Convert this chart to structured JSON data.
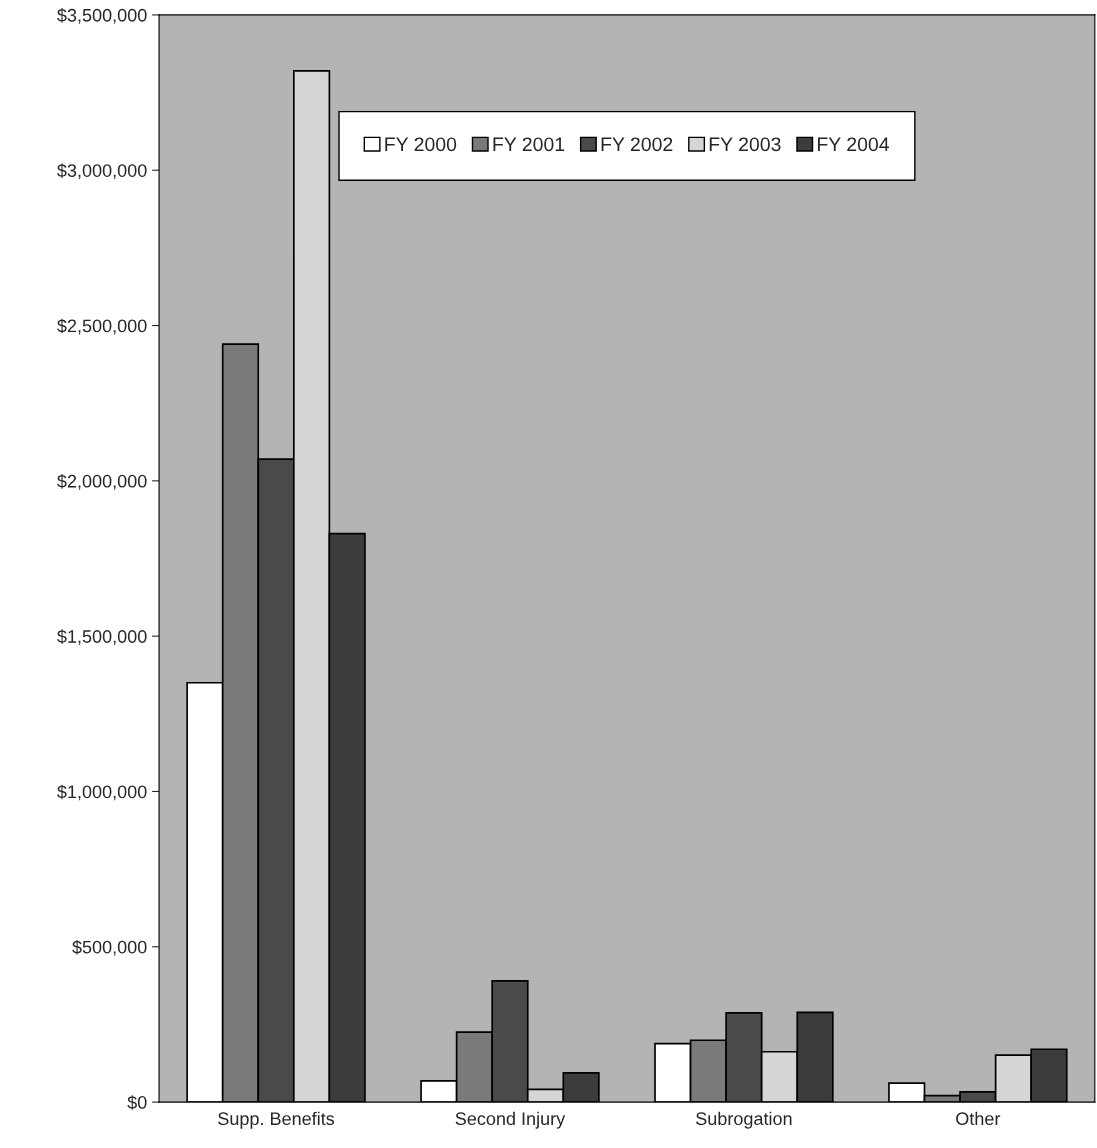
{
  "chart_data": {
    "type": "bar",
    "categories": [
      "Supp. Benefits",
      "Second Injury",
      "Subrogation",
      "Other"
    ],
    "series": [
      {
        "name": "FY 2000",
        "color": "#ffffff",
        "values": [
          1350000,
          68000,
          188000,
          61000
        ]
      },
      {
        "name": "FY 2001",
        "color": "#7a7a7a",
        "values": [
          2440000,
          225000,
          199000,
          21000
        ]
      },
      {
        "name": "FY 2002",
        "color": "#4a4a4a",
        "values": [
          2070000,
          390000,
          287000,
          33000
        ]
      },
      {
        "name": "FY 2003",
        "color": "#d6d6d6",
        "values": [
          3320000,
          41000,
          162000,
          151000
        ]
      },
      {
        "name": "FY 2004",
        "color": "#3c3c3c",
        "values": [
          1830000,
          94000,
          289000,
          170000
        ]
      }
    ],
    "ylim": [
      0,
      3500000
    ],
    "yticks": [
      {
        "value": 0,
        "label": "$0"
      },
      {
        "value": 500000,
        "label": "$500,000"
      },
      {
        "value": 1000000,
        "label": "$1,000,000"
      },
      {
        "value": 1500000,
        "label": "$1,500,000"
      },
      {
        "value": 2000000,
        "label": "$2,000,000"
      },
      {
        "value": 2500000,
        "label": "$2,500,000"
      },
      {
        "value": 3000000,
        "label": "$3,000,000"
      },
      {
        "value": 3500000,
        "label": "$3,500,000"
      }
    ],
    "legend": "top",
    "grid": false
  }
}
